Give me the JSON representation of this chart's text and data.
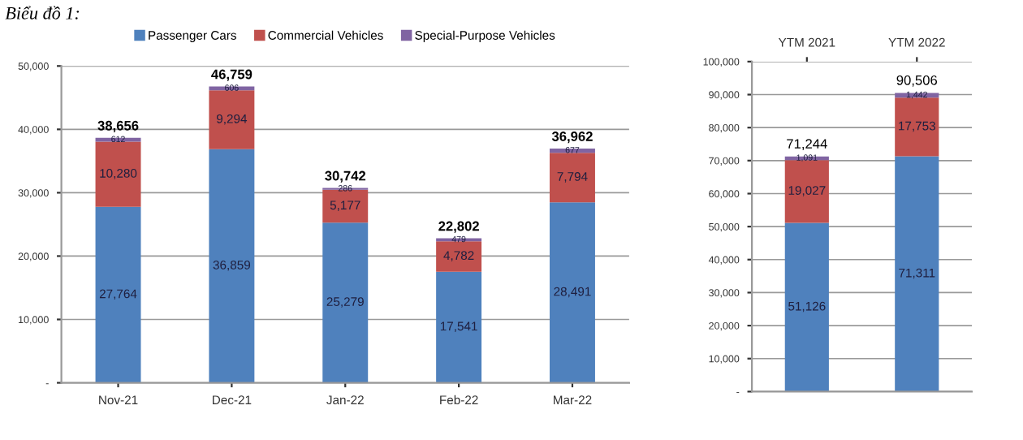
{
  "chart_data": [
    {
      "type": "bar",
      "title": "Biểu đồ 1:",
      "stacked": true,
      "categories": [
        "Nov-21",
        "Dec-21",
        "Jan-22",
        "Feb-22",
        "Mar-22"
      ],
      "series": [
        {
          "name": "Passenger Cars",
          "color": "#4f81bd",
          "values": [
            27764,
            36859,
            25279,
            17541,
            28491
          ],
          "value_labels": [
            "27,764",
            "36,859",
            "25,279",
            "17,541",
            "28,491"
          ]
        },
        {
          "name": "Commercial Vehicles",
          "color": "#c0504d",
          "values": [
            10280,
            9294,
            5177,
            4782,
            7794
          ],
          "value_labels": [
            "10,280",
            "9,294",
            "5,177",
            "4,782",
            "7,794"
          ]
        },
        {
          "name": "Special-Purpose Vehicles",
          "color": "#8064a2",
          "values": [
            612,
            606,
            286,
            479,
            677
          ],
          "value_labels": [
            "612",
            "606",
            "286",
            "479",
            "677"
          ]
        }
      ],
      "totals": [
        "38,656",
        "46,759",
        "30,742",
        "22,802",
        "36,962"
      ],
      "ylim": [
        0,
        50000
      ],
      "yticks": [
        {
          "value": 0,
          "label": "-"
        },
        {
          "value": 10000,
          "label": "10,000"
        },
        {
          "value": 20000,
          "label": "20,000"
        },
        {
          "value": 30000,
          "label": "30,000"
        },
        {
          "value": 40000,
          "label": "40,000"
        },
        {
          "value": 50000,
          "label": "50,000"
        }
      ],
      "grid": "y",
      "legend": "top"
    },
    {
      "type": "bar",
      "stacked": true,
      "categories": [
        "YTM 2021",
        "YTM 2022"
      ],
      "series": [
        {
          "color": "#4f81bd",
          "values": [
            51126,
            71311
          ],
          "value_labels": [
            "51,126",
            "71,311"
          ]
        },
        {
          "color": "#c0504d",
          "values": [
            19027,
            17753
          ],
          "value_labels": [
            "19,027",
            "17,753"
          ]
        },
        {
          "color": "#8064a2",
          "values": [
            1091,
            1442
          ],
          "value_labels": [
            "1,091",
            "1,442"
          ]
        }
      ],
      "totals": [
        "71,244",
        "90,506"
      ],
      "ylim": [
        0,
        100000
      ],
      "yticks": [
        {
          "value": 0,
          "label": "-"
        },
        {
          "value": 10000,
          "label": "10,000"
        },
        {
          "value": 20000,
          "label": "20,000"
        },
        {
          "value": 30000,
          "label": "30,000"
        },
        {
          "value": 40000,
          "label": "40,000"
        },
        {
          "value": 50000,
          "label": "50,000"
        },
        {
          "value": 60000,
          "label": "60,000"
        },
        {
          "value": 70000,
          "label": "70,000"
        },
        {
          "value": 80000,
          "label": "80,000"
        },
        {
          "value": 90000,
          "label": "90,000"
        },
        {
          "value": 100000,
          "label": "100,000"
        }
      ],
      "grid": "y",
      "legend": false
    }
  ]
}
